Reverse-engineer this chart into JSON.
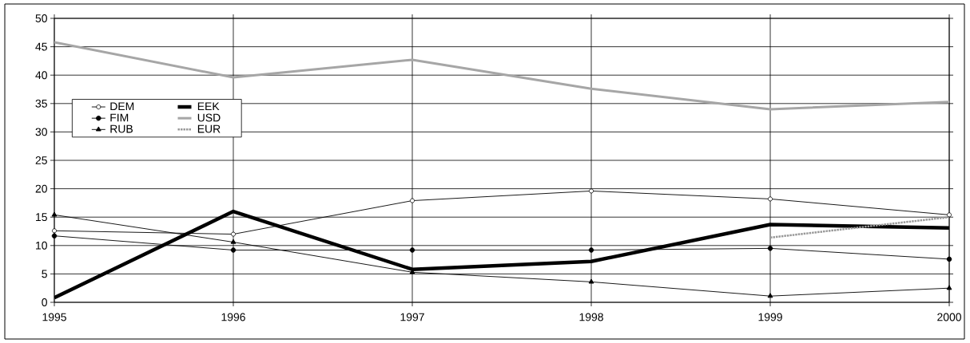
{
  "chart_data": {
    "type": "line",
    "x": [
      1995,
      1996,
      1997,
      1998,
      1999,
      2000
    ],
    "xlim": [
      1995,
      2000
    ],
    "xticks": [
      1995,
      1996,
      1997,
      1998,
      1999,
      2000
    ],
    "ylim": [
      0,
      50
    ],
    "yticks": [
      0,
      5,
      10,
      15,
      20,
      25,
      30,
      35,
      40,
      45,
      50
    ],
    "grid": true,
    "legend": "left",
    "series": [
      {
        "name": "DEM",
        "color": "#000000",
        "marker": "circle-open",
        "values": [
          12.6,
          12.0,
          17.9,
          19.6,
          18.2,
          15.4
        ]
      },
      {
        "name": "EEK",
        "color": "#000000",
        "marker": "none",
        "values": [
          0.8,
          16.0,
          5.8,
          7.2,
          13.7,
          13.1
        ]
      },
      {
        "name": "FIM",
        "color": "#000000",
        "marker": "circle",
        "values": [
          11.7,
          9.2,
          9.2,
          9.2,
          9.5,
          7.6
        ]
      },
      {
        "name": "USD",
        "color": "#a6a6a6",
        "marker": "none",
        "values": [
          45.8,
          39.6,
          42.7,
          37.6,
          34.0,
          35.3
        ]
      },
      {
        "name": "RUB",
        "color": "#000000",
        "marker": "triangle",
        "values": [
          15.4,
          10.6,
          5.3,
          3.6,
          1.1,
          2.5
        ]
      },
      {
        "name": "EUR",
        "color": "#999999",
        "marker": "none",
        "line_style": "dotted",
        "values": [
          null,
          null,
          null,
          null,
          11.4,
          15.0
        ]
      }
    ]
  }
}
